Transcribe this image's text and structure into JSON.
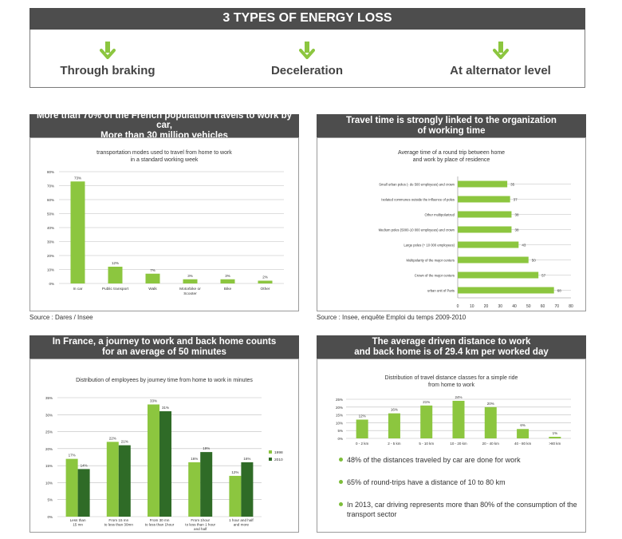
{
  "header": {
    "title": "3 TYPES  OF ENERGY LOSS"
  },
  "losses": [
    {
      "label": "Through braking",
      "icon": "green-down-arrow-icon"
    },
    {
      "label": "Deceleration",
      "icon": "green-down-arrow-icon"
    },
    {
      "label": "At alternator level",
      "icon": "green-down-arrow-icon"
    }
  ],
  "colors": {
    "header_bg": "#4d4d4d",
    "light_green": "#8cc63f",
    "dark_green": "#2f6b27",
    "grid": "#bdbdbd"
  },
  "panels": {
    "top_left": {
      "heading": [
        "More than 70% of the French population travels to work by car,",
        "More than 30 million vehicles"
      ],
      "source": "Source : Dares / Insee"
    },
    "top_right": {
      "heading": [
        "Travel time is strongly linked to the organization",
        "of working time"
      ],
      "source": "Source : Insee, enquête Emploi du temps 2009-2010"
    },
    "bottom_left": {
      "heading": [
        "In France, a journey to work and back home counts",
        "for an average of 50 minutes"
      ]
    },
    "bottom_right": {
      "heading": [
        "The average driven distance to work",
        "and back home is of 29.4 km per worked day"
      ],
      "bullets": [
        "48% of the distances traveled by car are done for work",
        "65% of round-trips have a distance of 10 to 80 km",
        "In 2013, car driving represents more than 80% of the consumption of the transport sector"
      ]
    }
  },
  "chart_data": [
    {
      "type": "bar",
      "title": "transportation modes used to travel from home to work\nin a standard working week",
      "categories": [
        "In car",
        "Public transport",
        "Walk",
        "Motorbike or Scooter",
        "Bike",
        "Other"
      ],
      "values": [
        73,
        12,
        7,
        3,
        3,
        2
      ],
      "labels": [
        "73%",
        "12%",
        "7%",
        "3%",
        "3%",
        "2%"
      ],
      "yticks": [
        "0%",
        "10%",
        "20%",
        "30%",
        "40%",
        "50%",
        "60%",
        "70%",
        "80%"
      ],
      "ylim": [
        0,
        80
      ],
      "grid": true
    },
    {
      "type": "bar",
      "orientation": "horizontal",
      "title": "Average time of a round trip between home\nand work by place of residence",
      "categories": [
        "Small urban poles (- de 500 employees) and crown",
        "Isolated communes outside the influence of poles",
        "Other multipolarized",
        "Medium poles (5000-10 000 employees) and crown",
        "Large poles (+ 10 000 employees)",
        "Multipolarity of the major centers",
        "Crown of the major centers",
        "urban unit of Paris"
      ],
      "values": [
        35,
        37,
        38,
        38,
        43,
        50,
        57,
        68
      ],
      "xticks": [
        "0",
        "10",
        "20",
        "30",
        "40",
        "50",
        "60",
        "70",
        "80"
      ],
      "xlim": [
        0,
        80
      ],
      "grid": true
    },
    {
      "type": "bar",
      "title": "Distribution of employees by journey time from home to work in minutes",
      "categories": [
        "Less than\n15 mn",
        "From 15 mn\nto less than 30mn",
        "From 30 mn\nto less than 1hour",
        "From 1hour\nto less than 1 hour\nand half",
        "1 hour and half\nand more"
      ],
      "series": [
        {
          "name": "1998",
          "values": [
            17,
            22,
            33,
            16,
            12
          ],
          "labels": [
            "17%",
            "22%",
            "33%",
            "16%",
            "12%"
          ]
        },
        {
          "name": "2010",
          "values": [
            14,
            21,
            31,
            19,
            16
          ],
          "labels": [
            "14%",
            "21%",
            "31%",
            "19%",
            "16%"
          ]
        }
      ],
      "yticks": [
        "0%",
        "5%",
        "10%",
        "15%",
        "20%",
        "25%",
        "30%",
        "35%"
      ],
      "ylim": [
        0,
        35
      ],
      "legend": "right",
      "grid": true
    },
    {
      "type": "bar",
      "title": "Distribution of travel distance classes for a simple ride\nfrom home to work",
      "categories": [
        "0 - 2 km",
        "2 - 5 km",
        "5 - 10 km",
        "10 - 20 km",
        "20 - 40 km",
        "40 - 80 km",
        ">80 km"
      ],
      "values": [
        12,
        16,
        21,
        24,
        20,
        6,
        1
      ],
      "labels": [
        "12%",
        "16%",
        "21%",
        "24%",
        "20%",
        "6%",
        "1%"
      ],
      "yticks": [
        "0%",
        "5%",
        "10%",
        "15%",
        "20%",
        "25%"
      ],
      "ylim": [
        0,
        25
      ],
      "grid": true
    }
  ]
}
